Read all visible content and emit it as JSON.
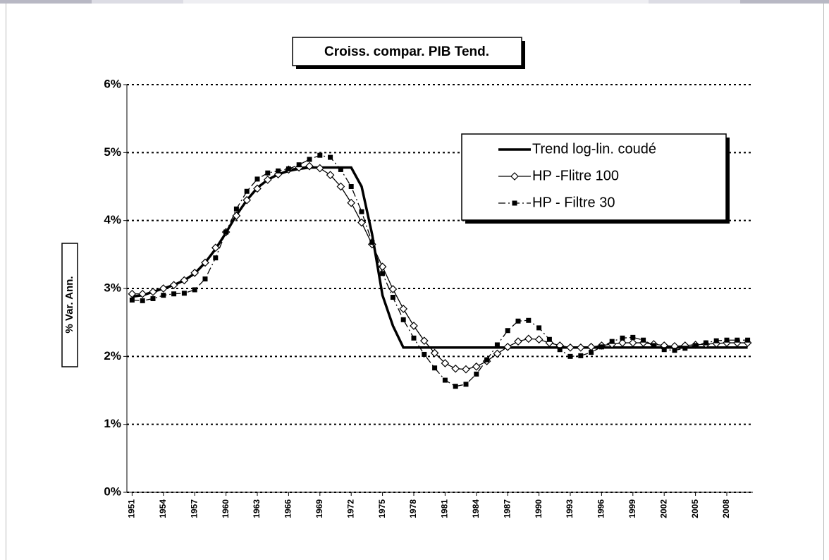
{
  "chart_data": {
    "type": "line",
    "title": "Croiss. compar. PIB Tend.",
    "y_label": "% Var. Ann.",
    "x": [
      1951,
      1952,
      1953,
      1954,
      1955,
      1956,
      1957,
      1958,
      1959,
      1960,
      1961,
      1962,
      1963,
      1964,
      1965,
      1966,
      1967,
      1968,
      1969,
      1970,
      1971,
      1972,
      1973,
      1974,
      1975,
      1976,
      1977,
      1978,
      1979,
      1980,
      1981,
      1982,
      1983,
      1984,
      1985,
      1986,
      1987,
      1988,
      1989,
      1990,
      1991,
      1992,
      1993,
      1994,
      1995,
      1996,
      1997,
      1998,
      1999,
      2000,
      2001,
      2002,
      2003,
      2004,
      2005,
      2006,
      2007,
      2008,
      2009,
      2010
    ],
    "xlim": [
      1950.5,
      2010.5
    ],
    "xticks": [
      1951,
      1954,
      1957,
      1960,
      1963,
      1966,
      1969,
      1972,
      1975,
      1978,
      1981,
      1984,
      1987,
      1990,
      1993,
      1996,
      1999,
      2002,
      2005,
      2008
    ],
    "ylim": [
      0,
      6
    ],
    "yticks": [
      {
        "value": 0,
        "label": "0%"
      },
      {
        "value": 1,
        "label": "1%"
      },
      {
        "value": 2,
        "label": "2%"
      },
      {
        "value": 3,
        "label": "3%"
      },
      {
        "value": 4,
        "label": "4%"
      },
      {
        "value": 5,
        "label": "5%"
      },
      {
        "value": 6,
        "label": "6%"
      }
    ],
    "grid": true,
    "legend": "upper right",
    "series": [
      {
        "name": "Trend log-lin. coudé",
        "color": "#000000",
        "marker": "none",
        "dash": "solid",
        "values": [
          2.88,
          2.9,
          2.95,
          3.0,
          3.05,
          3.12,
          3.22,
          3.38,
          3.58,
          3.82,
          4.08,
          4.3,
          4.48,
          4.6,
          4.68,
          4.73,
          4.76,
          4.78,
          4.78,
          4.78,
          4.78,
          4.78,
          4.5,
          3.8,
          2.9,
          2.45,
          2.13,
          2.13,
          2.13,
          2.13,
          2.13,
          2.13,
          2.13,
          2.13,
          2.13,
          2.13,
          2.13,
          2.13,
          2.13,
          2.13,
          2.13,
          2.13,
          2.13,
          2.13,
          2.13,
          2.13,
          2.13,
          2.13,
          2.13,
          2.13,
          2.13,
          2.13,
          2.13,
          2.13,
          2.13,
          2.13,
          2.13,
          2.13,
          2.13,
          2.13
        ]
      },
      {
        "name": "HP -Flitre 100",
        "color": "#000000",
        "marker": "diamond",
        "dash": "solid",
        "values": [
          2.92,
          2.92,
          2.95,
          3.0,
          3.05,
          3.12,
          3.23,
          3.38,
          3.6,
          3.83,
          4.07,
          4.3,
          4.47,
          4.6,
          4.68,
          4.75,
          4.78,
          4.8,
          4.77,
          4.67,
          4.5,
          4.26,
          3.97,
          3.65,
          3.32,
          2.99,
          2.7,
          2.45,
          2.23,
          2.05,
          1.9,
          1.82,
          1.81,
          1.85,
          1.93,
          2.04,
          2.14,
          2.22,
          2.26,
          2.25,
          2.2,
          2.16,
          2.13,
          2.13,
          2.14,
          2.16,
          2.18,
          2.2,
          2.2,
          2.2,
          2.18,
          2.16,
          2.15,
          2.16,
          2.17,
          2.18,
          2.19,
          2.2,
          2.2,
          2.2
        ]
      },
      {
        "name": "HP - Filtre 30",
        "color": "#000000",
        "marker": "square",
        "dash": "dashdot",
        "values": [
          2.83,
          2.82,
          2.85,
          2.9,
          2.92,
          2.93,
          2.98,
          3.14,
          3.45,
          3.83,
          4.17,
          4.43,
          4.61,
          4.7,
          4.73,
          4.76,
          4.82,
          4.9,
          4.96,
          4.93,
          4.75,
          4.5,
          4.13,
          3.68,
          3.22,
          2.87,
          2.54,
          2.27,
          2.03,
          1.83,
          1.65,
          1.56,
          1.59,
          1.74,
          1.95,
          2.17,
          2.38,
          2.52,
          2.53,
          2.42,
          2.25,
          2.1,
          2.0,
          2.01,
          2.06,
          2.14,
          2.22,
          2.27,
          2.28,
          2.24,
          2.16,
          2.1,
          2.09,
          2.12,
          2.16,
          2.2,
          2.23,
          2.24,
          2.24,
          2.24
        ]
      }
    ]
  }
}
